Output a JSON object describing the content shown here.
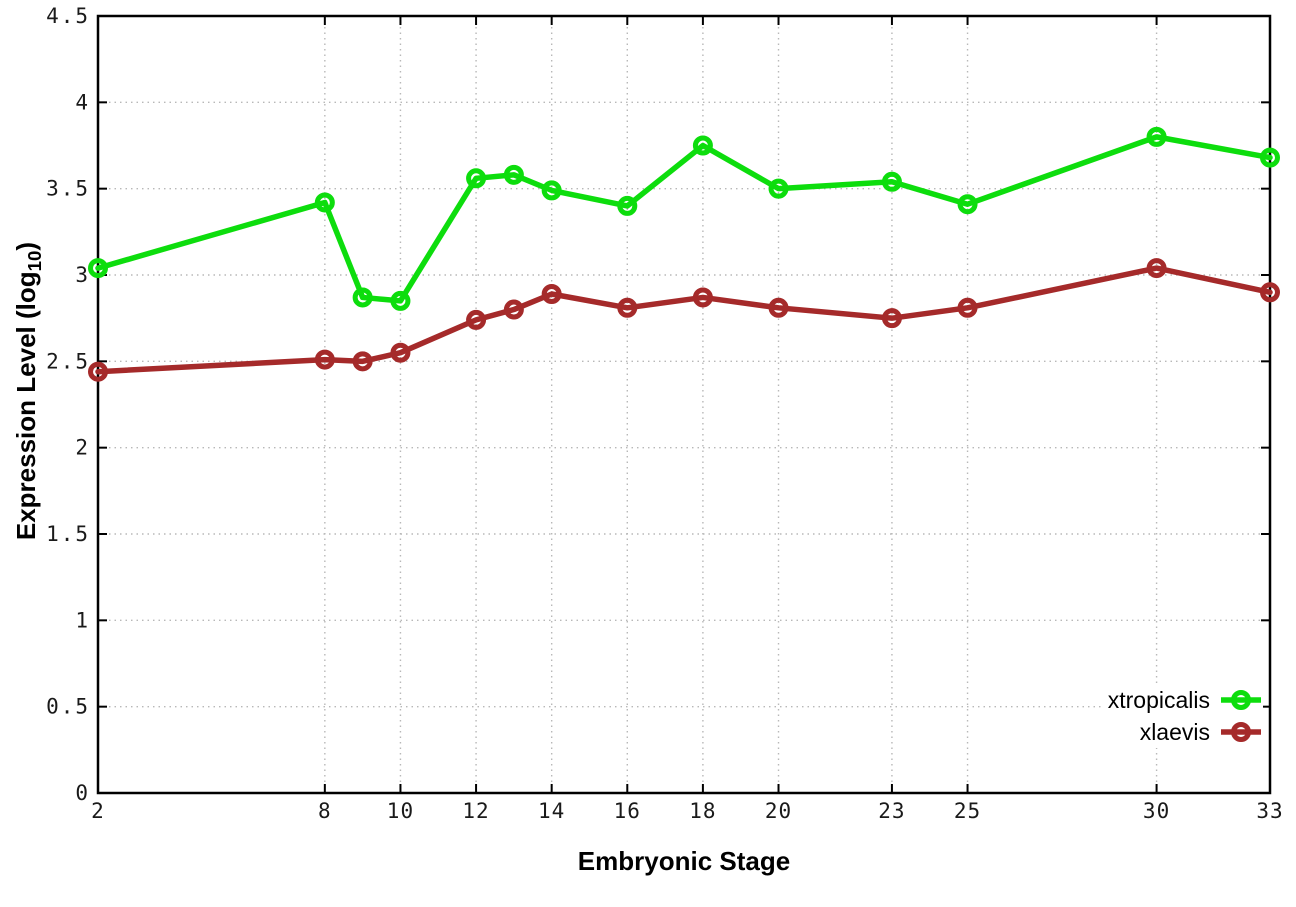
{
  "chart_data": {
    "type": "line",
    "title": "",
    "xlabel": "Embryonic Stage",
    "ylabel": {
      "text": "Expression Level (log10)",
      "before_sub": "Expression Level (log",
      "sub": "10",
      "after_sub": ")"
    },
    "x": [
      2,
      8,
      9,
      10,
      12,
      13,
      14,
      16,
      18,
      20,
      23,
      25,
      30,
      33
    ],
    "series": [
      {
        "name": "xtropicalis",
        "color": "#0ddd0d",
        "values": [
          3.04,
          3.42,
          2.87,
          2.85,
          3.56,
          3.58,
          3.49,
          3.4,
          3.75,
          3.5,
          3.54,
          3.41,
          3.8,
          3.68
        ]
      },
      {
        "name": "xlaevis",
        "color": "#a52a2a",
        "values": [
          2.44,
          2.51,
          2.5,
          2.55,
          2.74,
          2.8,
          2.89,
          2.81,
          2.87,
          2.81,
          2.75,
          2.81,
          3.04,
          2.9
        ]
      }
    ],
    "xticks": {
      "values": [
        2,
        8,
        10,
        12,
        14,
        16,
        18,
        20,
        23,
        25,
        30,
        33
      ],
      "labels": [
        "2",
        "8",
        "10",
        "12",
        "14",
        "16",
        "18",
        "20",
        "23",
        "25",
        "30",
        "33"
      ]
    },
    "yticks": {
      "values": [
        0,
        0.5,
        1,
        1.5,
        2,
        2.5,
        3,
        3.5,
        4,
        4.5
      ],
      "labels": [
        "0",
        "0.5",
        "1",
        "1.5",
        "2",
        "2.5",
        "3",
        "3.5",
        "4",
        "4.5"
      ]
    },
    "xlim": [
      2,
      33
    ],
    "ylim": [
      0,
      4.5
    ],
    "grid": "dotted",
    "legend_position": "inside-bottom-right",
    "colors": {
      "axis": "#000000",
      "grid": "#b8b8b8",
      "tick_text": "#1a1a1a",
      "background": "#ffffff"
    }
  }
}
